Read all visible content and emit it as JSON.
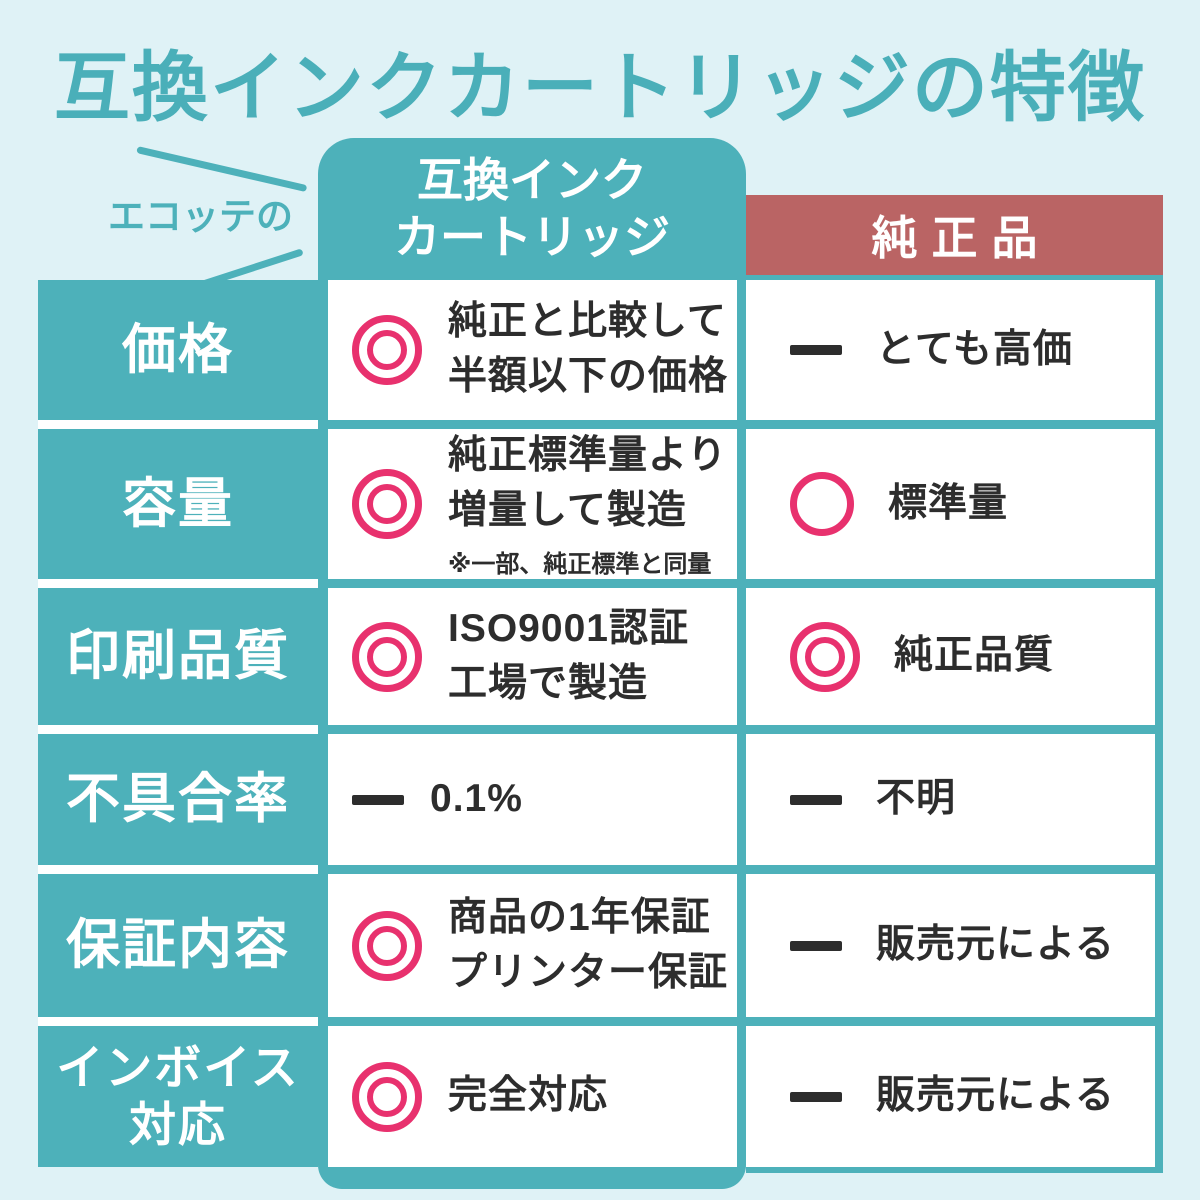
{
  "title": "互換インクカートリッジの特徴",
  "brand_label": "エコッテの",
  "headers": {
    "compat": "互換インク\nカートリッジ",
    "genuine": "純正品"
  },
  "icons": {
    "double-circle": "◎",
    "single-circle": "○",
    "dash": "—"
  },
  "colors": {
    "teal": "#4db1ba",
    "background": "#dff2f6",
    "red": "#ba6464",
    "pink": "#e8316e",
    "text": "#2d2d2d"
  },
  "rows": [
    {
      "label": "価格",
      "compat": {
        "icon": "double-circle",
        "text": "純正と比較して\n半額以下の価格"
      },
      "genuine": {
        "icon": "dash",
        "text": "とても高価"
      }
    },
    {
      "label": "容量",
      "compat": {
        "icon": "double-circle",
        "text": "純正標準量より\n増量して製造",
        "note": "※一部、純正標準と同量"
      },
      "genuine": {
        "icon": "single-circle",
        "text": "標準量"
      }
    },
    {
      "label": "印刷品質",
      "compat": {
        "icon": "double-circle",
        "text": "ISO9001認証\n工場で製造"
      },
      "genuine": {
        "icon": "double-circle",
        "text": "純正品質"
      }
    },
    {
      "label": "不具合率",
      "compat": {
        "icon": "dash",
        "text": "0.1%"
      },
      "genuine": {
        "icon": "dash",
        "text": "不明"
      }
    },
    {
      "label": "保証内容",
      "compat": {
        "icon": "double-circle",
        "text": "商品の1年保証\nプリンター保証"
      },
      "genuine": {
        "icon": "dash",
        "text": "販売元による"
      }
    },
    {
      "label": "インボイス\n対応",
      "compat": {
        "icon": "double-circle",
        "text": "完全対応"
      },
      "genuine": {
        "icon": "dash",
        "text": "販売元による"
      }
    }
  ]
}
